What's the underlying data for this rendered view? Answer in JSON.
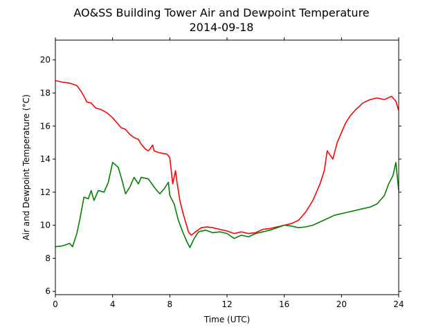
{
  "chart_data": {
    "type": "line",
    "title": "AO&SS Building Tower Air and Dewpoint Temperature",
    "subtitle": "2014-09-18",
    "xlabel": "Time (UTC)",
    "ylabel": "Air and Dewpoint Temperature (°C)",
    "xlim": [
      0,
      24
    ],
    "ylim": [
      5.8,
      21.2
    ],
    "xticks": [
      0,
      4,
      8,
      12,
      16,
      20,
      24
    ],
    "yticks": [
      6,
      8,
      10,
      12,
      14,
      16,
      18,
      20
    ],
    "grid": false,
    "series": [
      {
        "key": "air",
        "color": "#ff0000",
        "points": [
          [
            0,
            18.75
          ],
          [
            0.5,
            18.65
          ],
          [
            1.0,
            18.6
          ],
          [
            1.5,
            18.45
          ],
          [
            1.8,
            18.1
          ],
          [
            2.0,
            17.8
          ],
          [
            2.2,
            17.45
          ],
          [
            2.5,
            17.4
          ],
          [
            2.8,
            17.1
          ],
          [
            3.2,
            17.0
          ],
          [
            3.6,
            16.8
          ],
          [
            4.0,
            16.5
          ],
          [
            4.3,
            16.2
          ],
          [
            4.6,
            15.9
          ],
          [
            4.9,
            15.8
          ],
          [
            5.2,
            15.5
          ],
          [
            5.5,
            15.3
          ],
          [
            5.8,
            15.2
          ],
          [
            6.0,
            14.9
          ],
          [
            6.3,
            14.6
          ],
          [
            6.5,
            14.5
          ],
          [
            6.6,
            14.6
          ],
          [
            6.8,
            14.85
          ],
          [
            6.9,
            14.5
          ],
          [
            7.2,
            14.4
          ],
          [
            7.5,
            14.35
          ],
          [
            7.8,
            14.3
          ],
          [
            8.0,
            14.1
          ],
          [
            8.2,
            12.5
          ],
          [
            8.4,
            13.3
          ],
          [
            8.5,
            12.6
          ],
          [
            8.7,
            11.5
          ],
          [
            8.9,
            10.8
          ],
          [
            9.1,
            10.2
          ],
          [
            9.3,
            9.6
          ],
          [
            9.5,
            9.4
          ],
          [
            9.8,
            9.6
          ],
          [
            10.2,
            9.85
          ],
          [
            10.6,
            9.9
          ],
          [
            11.0,
            9.85
          ],
          [
            11.5,
            9.75
          ],
          [
            12.0,
            9.65
          ],
          [
            12.5,
            9.5
          ],
          [
            13.0,
            9.6
          ],
          [
            13.5,
            9.5
          ],
          [
            14.0,
            9.55
          ],
          [
            14.5,
            9.75
          ],
          [
            15.0,
            9.8
          ],
          [
            15.5,
            9.9
          ],
          [
            16.0,
            10.0
          ],
          [
            16.5,
            10.1
          ],
          [
            17.0,
            10.3
          ],
          [
            17.5,
            10.8
          ],
          [
            18.0,
            11.5
          ],
          [
            18.5,
            12.5
          ],
          [
            18.8,
            13.3
          ],
          [
            19.0,
            14.5
          ],
          [
            19.4,
            14.0
          ],
          [
            19.7,
            15.0
          ],
          [
            20.0,
            15.6
          ],
          [
            20.3,
            16.2
          ],
          [
            20.6,
            16.6
          ],
          [
            21.0,
            17.0
          ],
          [
            21.5,
            17.4
          ],
          [
            22.0,
            17.6
          ],
          [
            22.5,
            17.7
          ],
          [
            23.0,
            17.6
          ],
          [
            23.5,
            17.8
          ],
          [
            23.8,
            17.5
          ],
          [
            24.0,
            16.95
          ]
        ]
      },
      {
        "key": "dewpoint",
        "color": "#008000",
        "points": [
          [
            0,
            8.7
          ],
          [
            0.5,
            8.75
          ],
          [
            1.0,
            8.9
          ],
          [
            1.2,
            8.7
          ],
          [
            1.5,
            9.5
          ],
          [
            1.7,
            10.3
          ],
          [
            2.0,
            11.7
          ],
          [
            2.3,
            11.6
          ],
          [
            2.5,
            12.1
          ],
          [
            2.7,
            11.5
          ],
          [
            3.0,
            12.1
          ],
          [
            3.4,
            12.0
          ],
          [
            3.7,
            12.6
          ],
          [
            4.0,
            13.8
          ],
          [
            4.4,
            13.5
          ],
          [
            4.7,
            12.6
          ],
          [
            4.9,
            11.9
          ],
          [
            5.2,
            12.3
          ],
          [
            5.5,
            12.9
          ],
          [
            5.8,
            12.5
          ],
          [
            6.0,
            12.9
          ],
          [
            6.5,
            12.8
          ],
          [
            7.0,
            12.2
          ],
          [
            7.3,
            11.9
          ],
          [
            7.6,
            12.2
          ],
          [
            7.9,
            12.6
          ],
          [
            8.0,
            11.8
          ],
          [
            8.3,
            11.3
          ],
          [
            8.6,
            10.3
          ],
          [
            8.9,
            9.6
          ],
          [
            9.2,
            9.0
          ],
          [
            9.4,
            8.65
          ],
          [
            9.7,
            9.2
          ],
          [
            10.0,
            9.6
          ],
          [
            10.5,
            9.7
          ],
          [
            11.0,
            9.55
          ],
          [
            11.5,
            9.6
          ],
          [
            12.0,
            9.5
          ],
          [
            12.5,
            9.2
          ],
          [
            13.0,
            9.4
          ],
          [
            13.5,
            9.3
          ],
          [
            14.0,
            9.5
          ],
          [
            14.5,
            9.6
          ],
          [
            15.0,
            9.7
          ],
          [
            15.5,
            9.85
          ],
          [
            16.0,
            10.0
          ],
          [
            16.5,
            9.95
          ],
          [
            17.0,
            9.85
          ],
          [
            17.5,
            9.9
          ],
          [
            18.0,
            10.0
          ],
          [
            18.5,
            10.2
          ],
          [
            19.0,
            10.4
          ],
          [
            19.5,
            10.6
          ],
          [
            20.0,
            10.7
          ],
          [
            20.5,
            10.8
          ],
          [
            21.0,
            10.9
          ],
          [
            21.5,
            11.0
          ],
          [
            22.0,
            11.1
          ],
          [
            22.5,
            11.3
          ],
          [
            23.0,
            11.8
          ],
          [
            23.3,
            12.5
          ],
          [
            23.6,
            13.0
          ],
          [
            23.8,
            13.8
          ],
          [
            24.0,
            12.1
          ]
        ]
      }
    ]
  }
}
